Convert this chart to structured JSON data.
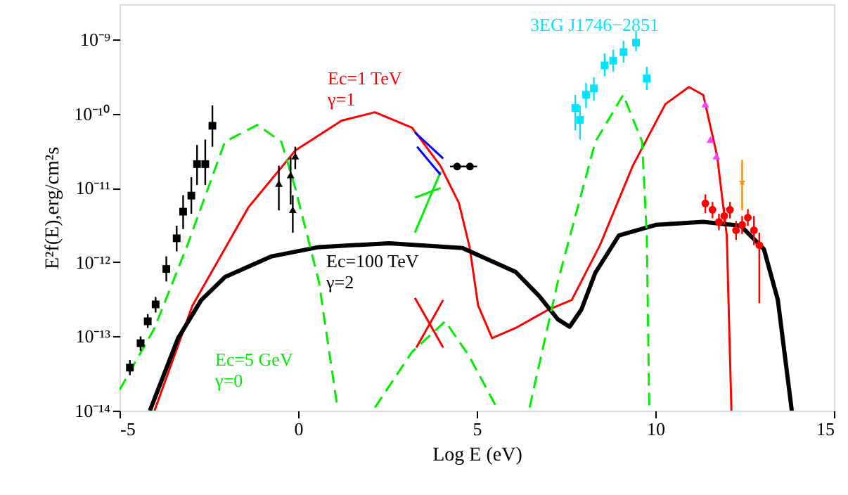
{
  "chart_data": {
    "type": "line",
    "xlabel": "Log E (eV)",
    "ylabel": "E²f(E),erg/cm²s",
    "log": "y",
    "grid": false,
    "xlim": [
      -5,
      15
    ],
    "xticks": [
      -5,
      0,
      5,
      10,
      15
    ],
    "ylim": [
      1e-14,
      3e-09
    ],
    "yticks": [
      {
        "value": 1e-14,
        "label": "10⁻¹⁴"
      },
      {
        "value": 1e-13,
        "label": "10⁻¹³"
      },
      {
        "value": 1e-12,
        "label": "10⁻¹²"
      },
      {
        "value": 1e-11,
        "label": "10⁻¹¹"
      },
      {
        "value": 1e-10,
        "label": "10⁻¹⁰"
      },
      {
        "value": 1e-09,
        "label": "10⁻⁹"
      }
    ],
    "series": [
      {
        "name": "Ec=1 TeV\nγ=1",
        "color": "#ff0000",
        "line_style": "solid",
        "x": [
          -4.02,
          -2.96,
          -1.39,
          -0.08,
          1.22,
          2.15,
          3.19,
          3.98,
          4.5,
          4.8,
          5.04,
          5.43,
          6.09,
          7.01,
          7.66,
          8.45,
          9.37,
          10.28,
          10.94,
          11.34,
          11.73,
          12.0,
          12.13
        ],
        "values": [
          1e-14,
          2.6e-13,
          5.5e-12,
          3.2e-11,
          8.1e-11,
          1.05e-10,
          6.5e-11,
          2e-11,
          6.3e-12,
          1.6e-12,
          2.6e-13,
          9.5e-14,
          1.3e-13,
          2.3e-13,
          3.1e-13,
          1.7e-12,
          2e-11,
          1.35e-10,
          2.3e-10,
          1.8e-10,
          2.7e-11,
          2.3e-12,
          1e-14
        ]
      },
      {
        "name": "Ec=100 TeV\nγ=2",
        "color": "#000000",
        "line_style": "solid",
        "x": [
          -4.15,
          -3.36,
          -2.71,
          -2.05,
          -0.74,
          0.58,
          2.55,
          4.6,
          6.09,
          6.75,
          7.27,
          7.6,
          7.93,
          8.32,
          8.98,
          10.03,
          11.34,
          12.39,
          13.04,
          13.43,
          13.82
        ],
        "values": [
          1e-14,
          9.5e-14,
          3.1e-13,
          6.3e-13,
          1.2e-12,
          1.6e-12,
          1.8e-12,
          1.55e-12,
          7.4e-13,
          3.5e-13,
          1.7e-13,
          1.35e-13,
          2.3e-13,
          7.2e-13,
          2.3e-12,
          3.2e-12,
          3.5e-12,
          3.1e-12,
          1.5e-12,
          3.1e-13,
          1e-14
        ]
      },
      {
        "name": "Ec=5 GeV\nγ=0",
        "color": "#00ee00",
        "line_style": "dashed",
        "x": [
          -5.0,
          -4.02,
          -3.1,
          -2.05,
          -1.14,
          -0.47,
          -0.08,
          0.58,
          1.1,
          1.6,
          2.15,
          3.19,
          4.12,
          4.78,
          5.56,
          6.0,
          6.48,
          7.27,
          8.32,
          9.1,
          9.63,
          9.76,
          9.83
        ],
        "values": [
          1.9e-14,
          1.3e-13,
          1.7e-12,
          4.2e-11,
          7.1e-11,
          4.2e-11,
          1e-11,
          5.5e-13,
          1.1e-14,
          null,
          1.1e-14,
          6.2e-14,
          1.6e-13,
          5.5e-14,
          1.1e-14,
          null,
          1.1e-14,
          5.5e-13,
          4.2e-11,
          1.8e-10,
          4.2e-11,
          2.3e-12,
          1.1e-14
        ]
      },
      {
        "type": "line",
        "color": "#00ee00",
        "line_style": "solid",
        "x": [
          3.27,
          3.99
        ],
        "values": [
          2.5e-12,
          1.66e-11
        ]
      },
      {
        "type": "line",
        "color": "#00ee00",
        "line_style": "solid",
        "x": [
          3.27,
          3.99
        ],
        "values": [
          7.4e-12,
          1e-11
        ]
      },
      {
        "type": "line",
        "color": "#ff0000",
        "line_style": "solid",
        "x": [
          3.27,
          4.06
        ],
        "values": [
          3.3e-13,
          7.1e-14
        ]
      },
      {
        "type": "line",
        "color": "#ff0000",
        "line_style": "solid",
        "x": [
          3.31,
          4.06
        ],
        "values": [
          7.1e-14,
          3.1e-13
        ]
      },
      {
        "type": "line",
        "color": "#0000ff",
        "line_style": "solid",
        "x": [
          3.27,
          4.06
        ],
        "values": [
          5.6e-11,
          2.5e-11
        ]
      },
      {
        "type": "line",
        "color": "#0000ff",
        "line_style": "solid",
        "x": [
          3.33,
          3.99
        ],
        "values": [
          3.6e-11,
          1.5e-11
        ]
      },
      {
        "type": "scatter",
        "marker": "square",
        "color": "#000000",
        "x": [
          -4.71,
          -4.41,
          -4.21,
          -3.99,
          -3.69,
          -3.4,
          -3.22,
          -2.99,
          -2.83,
          -2.6,
          -2.4
        ],
        "values": [
          3.8e-14,
          8.1e-14,
          1.6e-13,
          2.7e-13,
          8.1e-13,
          2.1e-12,
          4.8e-12,
          7.9e-12,
          2.1e-11,
          2.1e-11,
          6.9e-11
        ],
        "errors": [
          [
            3e-14,
            4.8e-14
          ],
          [
            6.4e-14,
            1e-13
          ],
          [
            1.3e-13,
            2e-13
          ],
          [
            2.1e-13,
            3.4e-13
          ],
          [
            5.5e-13,
            1.2e-12
          ],
          [
            1.4e-12,
            3.1e-12
          ],
          [
            2.8e-12,
            8e-12
          ],
          [
            4.5e-12,
            1.4e-11
          ],
          [
            1.1e-11,
            3.8e-11
          ],
          [
            1.1e-11,
            4.5e-11
          ],
          [
            3.6e-11,
            1.3e-10
          ]
        ]
      },
      {
        "type": "scatter",
        "marker": "triangle",
        "color": "#000000",
        "x": [
          -0.54,
          -0.21,
          -0.08,
          -0.15
        ],
        "values": [
          1.15e-11,
          1.5e-11,
          2.7e-11,
          5.1e-12
        ],
        "errors": [
          [
            5e-12,
            2e-11
          ],
          [
            6e-12,
            2.6e-11
          ],
          [
            1.8e-11,
            3.6e-11
          ],
          [
            2.5e-12,
            8e-12
          ]
        ]
      },
      {
        "type": "scatter",
        "marker": "circle",
        "color": "#000000",
        "x": [
          4.45,
          4.81
        ],
        "values": [
          1.95e-11,
          1.95e-11
        ],
        "xerrors": [
          0.2,
          0.2
        ]
      },
      {
        "name": "3EG J1746−2851",
        "type": "scatter",
        "marker": "square",
        "color": "#00e5ff",
        "x": [
          7.76,
          7.89,
          8.06,
          8.28,
          8.58,
          8.82,
          9.11,
          9.46,
          9.76
        ],
        "values": [
          1.2e-10,
          8.3e-11,
          1.8e-10,
          2.2e-10,
          4.5e-10,
          5.2e-10,
          6.8e-10,
          9.1e-10,
          3e-10
        ],
        "errors": [
          [
            6e-11,
            1.8e-10
          ],
          [
            4.5e-11,
            1.3e-10
          ],
          [
            1.2e-10,
            2.6e-10
          ],
          [
            1.5e-10,
            3.1e-10
          ],
          [
            3.2e-10,
            6.5e-10
          ],
          [
            3.7e-10,
            7.3e-10
          ],
          [
            4.9e-10,
            9.6e-10
          ],
          [
            7e-10,
            1.3e-09
          ],
          [
            2.1e-10,
            4.3e-10
          ]
        ]
      },
      {
        "type": "scatter",
        "marker": "triangle",
        "color": "#ff40ff",
        "x": [
          11.4,
          11.54,
          11.71
        ],
        "values": [
          1.35e-10,
          4.5e-11,
          2.7e-11
        ]
      },
      {
        "type": "scatter",
        "marker": "circle",
        "color": "#ff0000",
        "x": [
          11.4,
          11.6,
          11.78,
          11.93,
          12.09,
          12.26,
          12.43,
          12.59,
          12.76,
          12.91
        ],
        "values": [
          6.2e-12,
          5.1e-12,
          3.5e-12,
          4.2e-12,
          5.1e-12,
          2.7e-12,
          3.2e-12,
          4e-12,
          2.7e-12,
          1.7e-12
        ],
        "errors": [
          [
            4.6e-12,
            8.2e-12
          ],
          [
            3.9e-12,
            6.5e-12
          ],
          [
            2.7e-12,
            4.5e-12
          ],
          [
            3.2e-12,
            5.5e-12
          ],
          [
            3.9e-12,
            6.5e-12
          ],
          [
            2e-12,
            3.6e-12
          ],
          [
            2.4e-12,
            4.2e-12
          ],
          [
            3.1e-12,
            5.2e-12
          ],
          [
            1.7e-12,
            4.2e-12
          ],
          [
            2.8e-13,
            2.5e-12
          ]
        ]
      },
      {
        "type": "scatter",
        "marker": "star",
        "color": "#ff8c00",
        "x": [
          12.43
        ],
        "values": [
          1.2e-11
        ],
        "errors": [
          [
            5e-12,
            2.4e-11
          ]
        ]
      }
    ]
  }
}
